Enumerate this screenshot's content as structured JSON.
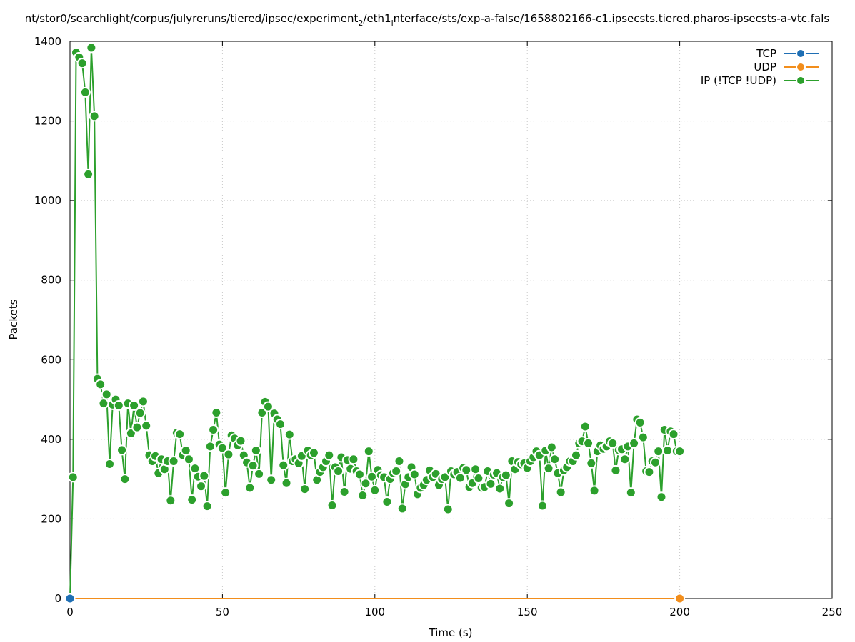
{
  "chart_data": {
    "type": "line",
    "title_segments": [
      {
        "text": "nt/stor0/searchlight/corpus/julyreruns/tiered/ipsec/experiment",
        "style": "normal"
      },
      {
        "text": "2",
        "style": "sub"
      },
      {
        "text": "/eth1",
        "style": "normal"
      },
      {
        "text": "i",
        "style": "sub"
      },
      {
        "text": "nterface/sts/exp-a-false/1658802166-c1.ipsecsts.tiered.pharos-ipsecsts-a-vtc.fals",
        "style": "normal"
      }
    ],
    "xlabel": "Time (s)",
    "ylabel": "Packets",
    "xlim": [
      0,
      250
    ],
    "ylim": [
      0,
      1400
    ],
    "xticks": [
      0,
      50,
      100,
      150,
      200,
      250
    ],
    "yticks": [
      0,
      200,
      400,
      600,
      800,
      1000,
      1200,
      1400
    ],
    "grid": true,
    "legend_position": "top-right",
    "series": [
      {
        "name": "TCP",
        "color": "#1f6fb4",
        "x": [
          0
        ],
        "y": [
          0
        ]
      },
      {
        "name": "UDP",
        "color": "#f28e1c",
        "x": [
          0,
          2,
          4,
          6,
          8,
          10,
          12,
          14,
          16,
          18,
          20,
          22,
          24,
          26,
          28,
          30,
          32,
          34,
          36,
          38,
          40,
          42,
          44,
          46,
          48,
          50,
          52,
          54,
          56,
          58,
          60,
          62,
          64,
          66,
          68,
          70,
          72,
          74,
          76,
          78,
          80,
          82,
          84,
          86,
          88,
          90,
          92,
          94,
          96,
          98,
          100,
          102,
          104,
          106,
          108,
          110,
          112,
          114,
          116,
          118,
          120,
          122,
          124,
          126,
          128,
          130,
          132,
          134,
          136,
          138,
          140,
          142,
          144,
          146,
          148,
          150,
          152,
          154,
          156,
          158,
          160,
          162,
          164,
          166,
          168,
          170,
          172,
          174,
          176,
          178,
          180,
          182,
          184,
          186,
          188,
          190,
          192,
          194,
          196,
          198,
          200
        ],
        "y": [
          0,
          0,
          0,
          0,
          0,
          0,
          0,
          0,
          0,
          0,
          0,
          0,
          0,
          0,
          0,
          0,
          0,
          0,
          0,
          0,
          0,
          0,
          0,
          0,
          0,
          0,
          0,
          0,
          0,
          0,
          0,
          0,
          0,
          0,
          0,
          0,
          0,
          0,
          0,
          0,
          0,
          0,
          0,
          0,
          0,
          0,
          0,
          0,
          0,
          0,
          0,
          0,
          0,
          0,
          0,
          0,
          0,
          0,
          0,
          0,
          0,
          0,
          0,
          0,
          0,
          0,
          0,
          0,
          0,
          0,
          0,
          0,
          0,
          0,
          0,
          0,
          0,
          0,
          0,
          0,
          0,
          0,
          0,
          0,
          0,
          0,
          0,
          0,
          0,
          0,
          0,
          0,
          0,
          0,
          0,
          0,
          0,
          0,
          0,
          0,
          0
        ],
        "marker_x": [
          200
        ],
        "marker_y": [
          0
        ]
      },
      {
        "name": "IP (!TCP  !UDP)",
        "color": "#2ca02c",
        "x": [
          0,
          1,
          2,
          3,
          4,
          5,
          6,
          7,
          8,
          9,
          10,
          11,
          12,
          13,
          14,
          15,
          16,
          17,
          18,
          19,
          20,
          21,
          22,
          23,
          24,
          25,
          26,
          27,
          28,
          29,
          30,
          31,
          32,
          33,
          34,
          35,
          36,
          37,
          38,
          39,
          40,
          41,
          42,
          43,
          44,
          45,
          46,
          47,
          48,
          49,
          50,
          51,
          52,
          53,
          54,
          55,
          56,
          57,
          58,
          59,
          60,
          61,
          62,
          63,
          64,
          65,
          66,
          67,
          68,
          69,
          70,
          71,
          72,
          73,
          74,
          75,
          76,
          77,
          78,
          79,
          80,
          81,
          82,
          83,
          84,
          85,
          86,
          87,
          88,
          89,
          90,
          91,
          92,
          93,
          94,
          95,
          96,
          97,
          98,
          99,
          100,
          101,
          102,
          103,
          104,
          105,
          106,
          107,
          108,
          109,
          110,
          111,
          112,
          113,
          114,
          115,
          116,
          117,
          118,
          119,
          120,
          121,
          122,
          123,
          124,
          125,
          126,
          127,
          128,
          129,
          130,
          131,
          132,
          133,
          134,
          135,
          136,
          137,
          138,
          139,
          140,
          141,
          142,
          143,
          144,
          145,
          146,
          147,
          148,
          149,
          150,
          151,
          152,
          153,
          154,
          155,
          156,
          157,
          158,
          159,
          160,
          161,
          162,
          163,
          164,
          165,
          166,
          167,
          168,
          169,
          170,
          171,
          172,
          173,
          174,
          175,
          176,
          177,
          178,
          179,
          180,
          181,
          182,
          183,
          184,
          185,
          186,
          187,
          188,
          189,
          190,
          191,
          192,
          193,
          194,
          195,
          196,
          197,
          198,
          199,
          200
        ],
        "y": [
          0,
          305,
          1372,
          1360,
          1345,
          1272,
          1066,
          1384,
          1212,
          552,
          538,
          490,
          513,
          338,
          487,
          500,
          485,
          373,
          300,
          490,
          415,
          485,
          430,
          466,
          495,
          434,
          360,
          345,
          358,
          315,
          350,
          325,
          345,
          246,
          345,
          416,
          413,
          360,
          372,
          350,
          248,
          327,
          306,
          282,
          308,
          232,
          382,
          424,
          467,
          387,
          378,
          266,
          362,
          410,
          402,
          385,
          396,
          360,
          342,
          278,
          334,
          372,
          313,
          467,
          494,
          482,
          298,
          465,
          450,
          438,
          335,
          290,
          412,
          345,
          350,
          340,
          358,
          275,
          372,
          360,
          366,
          298,
          318,
          330,
          345,
          360,
          234,
          330,
          320,
          355,
          268,
          348,
          326,
          350,
          320,
          312,
          259,
          289,
          370,
          306,
          272,
          323,
          310,
          305,
          243,
          300,
          315,
          320,
          345,
          226,
          287,
          305,
          330,
          312,
          262,
          278,
          285,
          298,
          322,
          305,
          313,
          285,
          300,
          305,
          224,
          320,
          312,
          318,
          303,
          328,
          323,
          280,
          290,
          325,
          302,
          278,
          280,
          320,
          288,
          311,
          315,
          276,
          305,
          310,
          239,
          345,
          325,
          343,
          337,
          340,
          328,
          345,
          355,
          370,
          360,
          233,
          372,
          327,
          380,
          350,
          315,
          267,
          322,
          330,
          345,
          345,
          360,
          390,
          395,
          432,
          390,
          340,
          271,
          370,
          385,
          376,
          382,
          395,
          390,
          322,
          373,
          375,
          350,
          382,
          266,
          390,
          450,
          442,
          405,
          320,
          318,
          345,
          342,
          370,
          255,
          424,
          372,
          420,
          413,
          370,
          370
        ]
      }
    ]
  }
}
